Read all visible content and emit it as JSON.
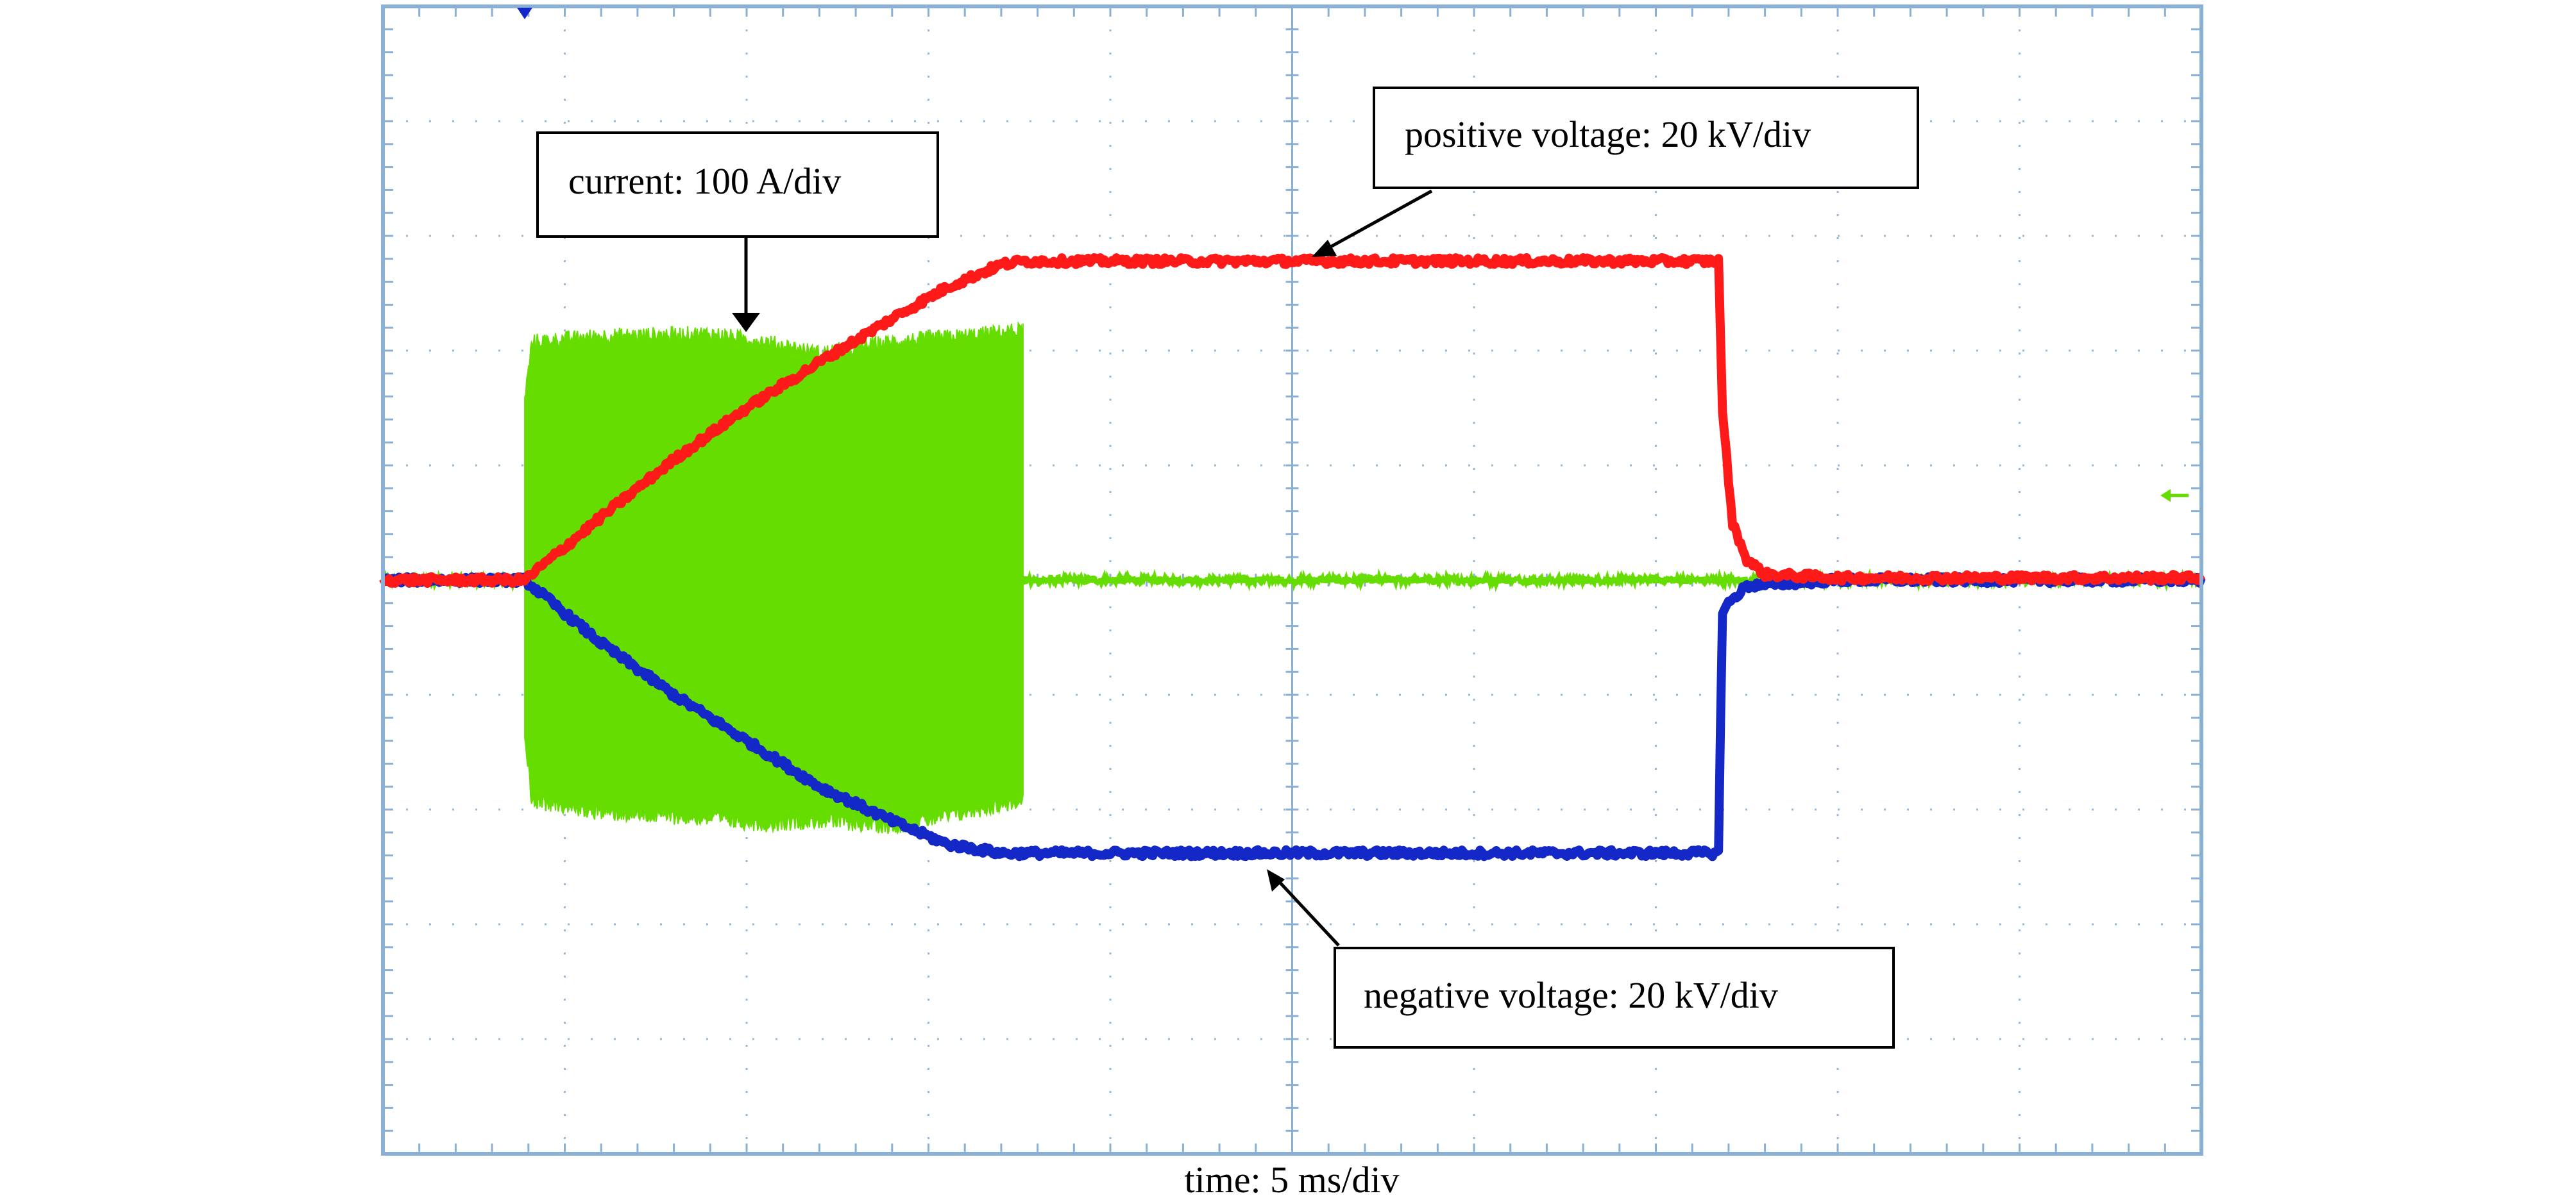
{
  "chart_data": {
    "type": "line",
    "title": "",
    "xlabel": "time: 5 ms/div",
    "ylabel": "",
    "grid": true,
    "legend": "none",
    "divisions": {
      "x": 10,
      "y": 10
    },
    "xlim": [
      0,
      10
    ],
    "ylim": [
      -5,
      5
    ],
    "annotations": {
      "current": "current: 100 A/div",
      "positive": "positive voltage: 20 kV/div",
      "negative": "negative voltage: 20 kV/div"
    },
    "series": [
      {
        "name": "current",
        "color": "#66dd00",
        "burst_start": 0.78,
        "burst_end": 3.52,
        "baseline": 0.0,
        "envelope": {
          "t": [
            0.78,
            0.82,
            1.2,
            1.8,
            2.1,
            2.4,
            2.8,
            3.2,
            3.5
          ],
          "upper": [
            1.55,
            2.05,
            2.1,
            2.12,
            2.05,
            1.95,
            2.05,
            2.1,
            2.15
          ],
          "lower": [
            -1.35,
            -1.9,
            -2.0,
            -2.05,
            -2.1,
            -2.07,
            -2.12,
            -2.0,
            -1.9
          ]
        }
      },
      {
        "name": "positive voltage",
        "color": "#ff1a1a",
        "t": [
          0,
          0.78,
          1.2,
          1.6,
          2.0,
          2.4,
          2.8,
          3.1,
          3.4,
          3.52,
          5.0,
          7.35,
          7.36,
          7.42,
          7.5,
          7.6,
          8.0,
          10
        ],
        "v": [
          0,
          0,
          0.55,
          1.05,
          1.5,
          1.9,
          2.28,
          2.55,
          2.75,
          2.78,
          2.78,
          2.78,
          1.6,
          0.5,
          0.18,
          0.05,
          0.02,
          0.02
        ]
      },
      {
        "name": "negative voltage",
        "color": "#1428c8",
        "t": [
          0,
          0.78,
          1.2,
          1.6,
          2.0,
          2.4,
          2.8,
          3.1,
          3.4,
          3.52,
          5.0,
          7.35,
          7.36,
          7.4,
          7.5,
          8.0,
          10
        ],
        "v": [
          0,
          0,
          -0.55,
          -1.0,
          -1.4,
          -1.8,
          -2.1,
          -2.3,
          -2.38,
          -2.38,
          -2.38,
          -2.38,
          -0.3,
          -0.2,
          -0.05,
          0,
          0
        ]
      }
    ]
  },
  "colors": {
    "frame": "#8ab0d6",
    "grid": "#8ab0d6",
    "current": "#66dd00",
    "positive": "#ff1a1a",
    "negative": "#1428c8",
    "box_border": "#000000"
  }
}
